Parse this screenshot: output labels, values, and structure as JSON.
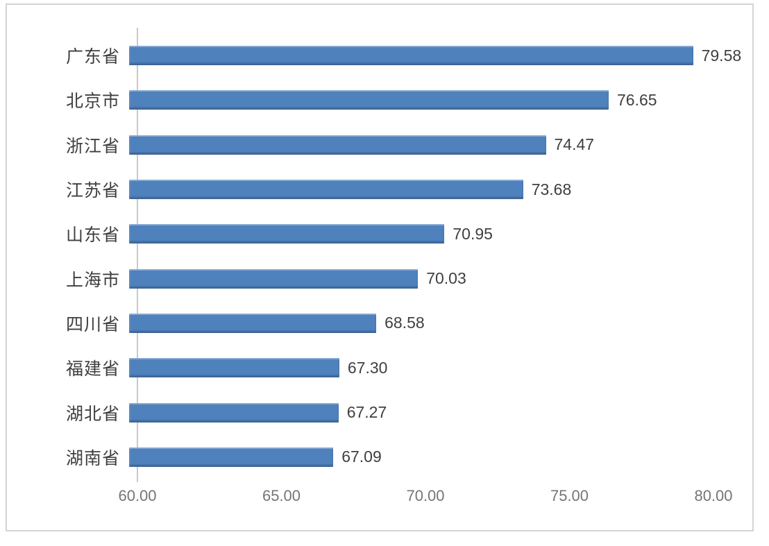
{
  "chart_data": {
    "type": "bar",
    "orientation": "horizontal",
    "title": "",
    "categories": [
      "广东省",
      "北京市",
      "浙江省",
      "江苏省",
      "山东省",
      "上海市",
      "四川省",
      "福建省",
      "湖北省",
      "湖南省"
    ],
    "values": [
      79.58,
      76.65,
      74.47,
      73.68,
      70.95,
      70.03,
      68.58,
      67.3,
      67.27,
      67.09
    ],
    "value_labels": [
      "79.58",
      "76.65",
      "74.47",
      "73.68",
      "70.95",
      "70.03",
      "68.58",
      "67.30",
      "67.27",
      "67.09"
    ],
    "x_ticks": [
      {
        "label": "60.00",
        "value": 60
      },
      {
        "label": "65.00",
        "value": 65
      },
      {
        "label": "70.00",
        "value": 70
      },
      {
        "label": "75.00",
        "value": 75
      },
      {
        "label": "80.00",
        "value": 80
      }
    ],
    "xlim": [
      60,
      80
    ],
    "grid": false,
    "legend": "none",
    "value_label_position": "outside-end",
    "colors": {
      "bar": "#4f81bd",
      "category_text": "#3f3f3f",
      "value_text": "#3f3f3f",
      "tick_text": "#757575",
      "axis_line": "#c9c9c9",
      "frame_border": "#d4d4d4",
      "background": "#ffffff"
    }
  }
}
